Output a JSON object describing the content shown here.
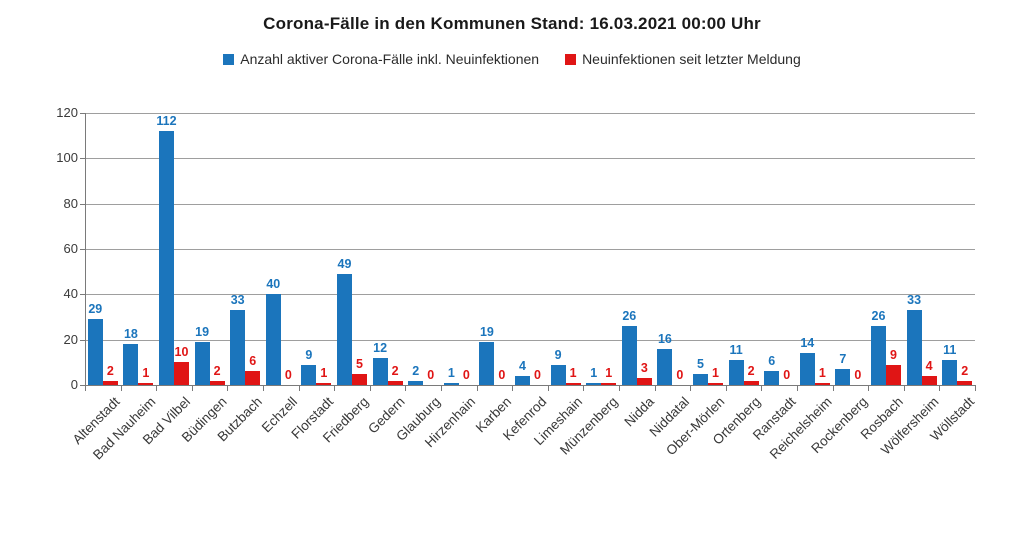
{
  "chart_data": {
    "type": "bar",
    "title": "Corona-Fälle in den Kommunen Stand: 16.03.2021 00:00 Uhr",
    "categories": [
      "Altenstadt",
      "Bad Nauheim",
      "Bad Vilbel",
      "Büdingen",
      "Butzbach",
      "Echzell",
      "Florstadt",
      "Friedberg",
      "Gedern",
      "Glauburg",
      "Hirzenhain",
      "Karben",
      "Kefenrod",
      "Limeshain",
      "Münzenberg",
      "Nidda",
      "Niddatal",
      "Ober-Mörlen",
      "Ortenberg",
      "Ranstadt",
      "Reichelsheim",
      "Rockenberg",
      "Rosbach",
      "Wölfersheim",
      "Wöllstadt"
    ],
    "series": [
      {
        "name": "Anzahl aktiver Corona-Fälle inkl. Neuinfektionen",
        "color": "#1B75BC",
        "values": [
          29,
          18,
          112,
          19,
          33,
          40,
          9,
          49,
          12,
          2,
          1,
          19,
          4,
          9,
          1,
          26,
          16,
          5,
          11,
          6,
          14,
          7,
          26,
          33,
          11
        ]
      },
      {
        "name": "Neuinfektionen seit letzter Meldung",
        "color": "#E01515",
        "values": [
          2,
          1,
          10,
          2,
          6,
          0,
          1,
          5,
          2,
          0,
          0,
          0,
          0,
          1,
          1,
          3,
          0,
          1,
          2,
          0,
          1,
          0,
          9,
          4,
          2
        ]
      }
    ],
    "xlabel": "",
    "ylabel": "",
    "ylim": [
      0,
      120
    ],
    "yticks": [
      0,
      20,
      40,
      60,
      80,
      100,
      120
    ],
    "grid": "horizontal",
    "legend_position": "top",
    "colors": {
      "grid": "#9E9E9E",
      "axis": "#7A7A7A",
      "tick_text": "#3A3A3A"
    }
  }
}
